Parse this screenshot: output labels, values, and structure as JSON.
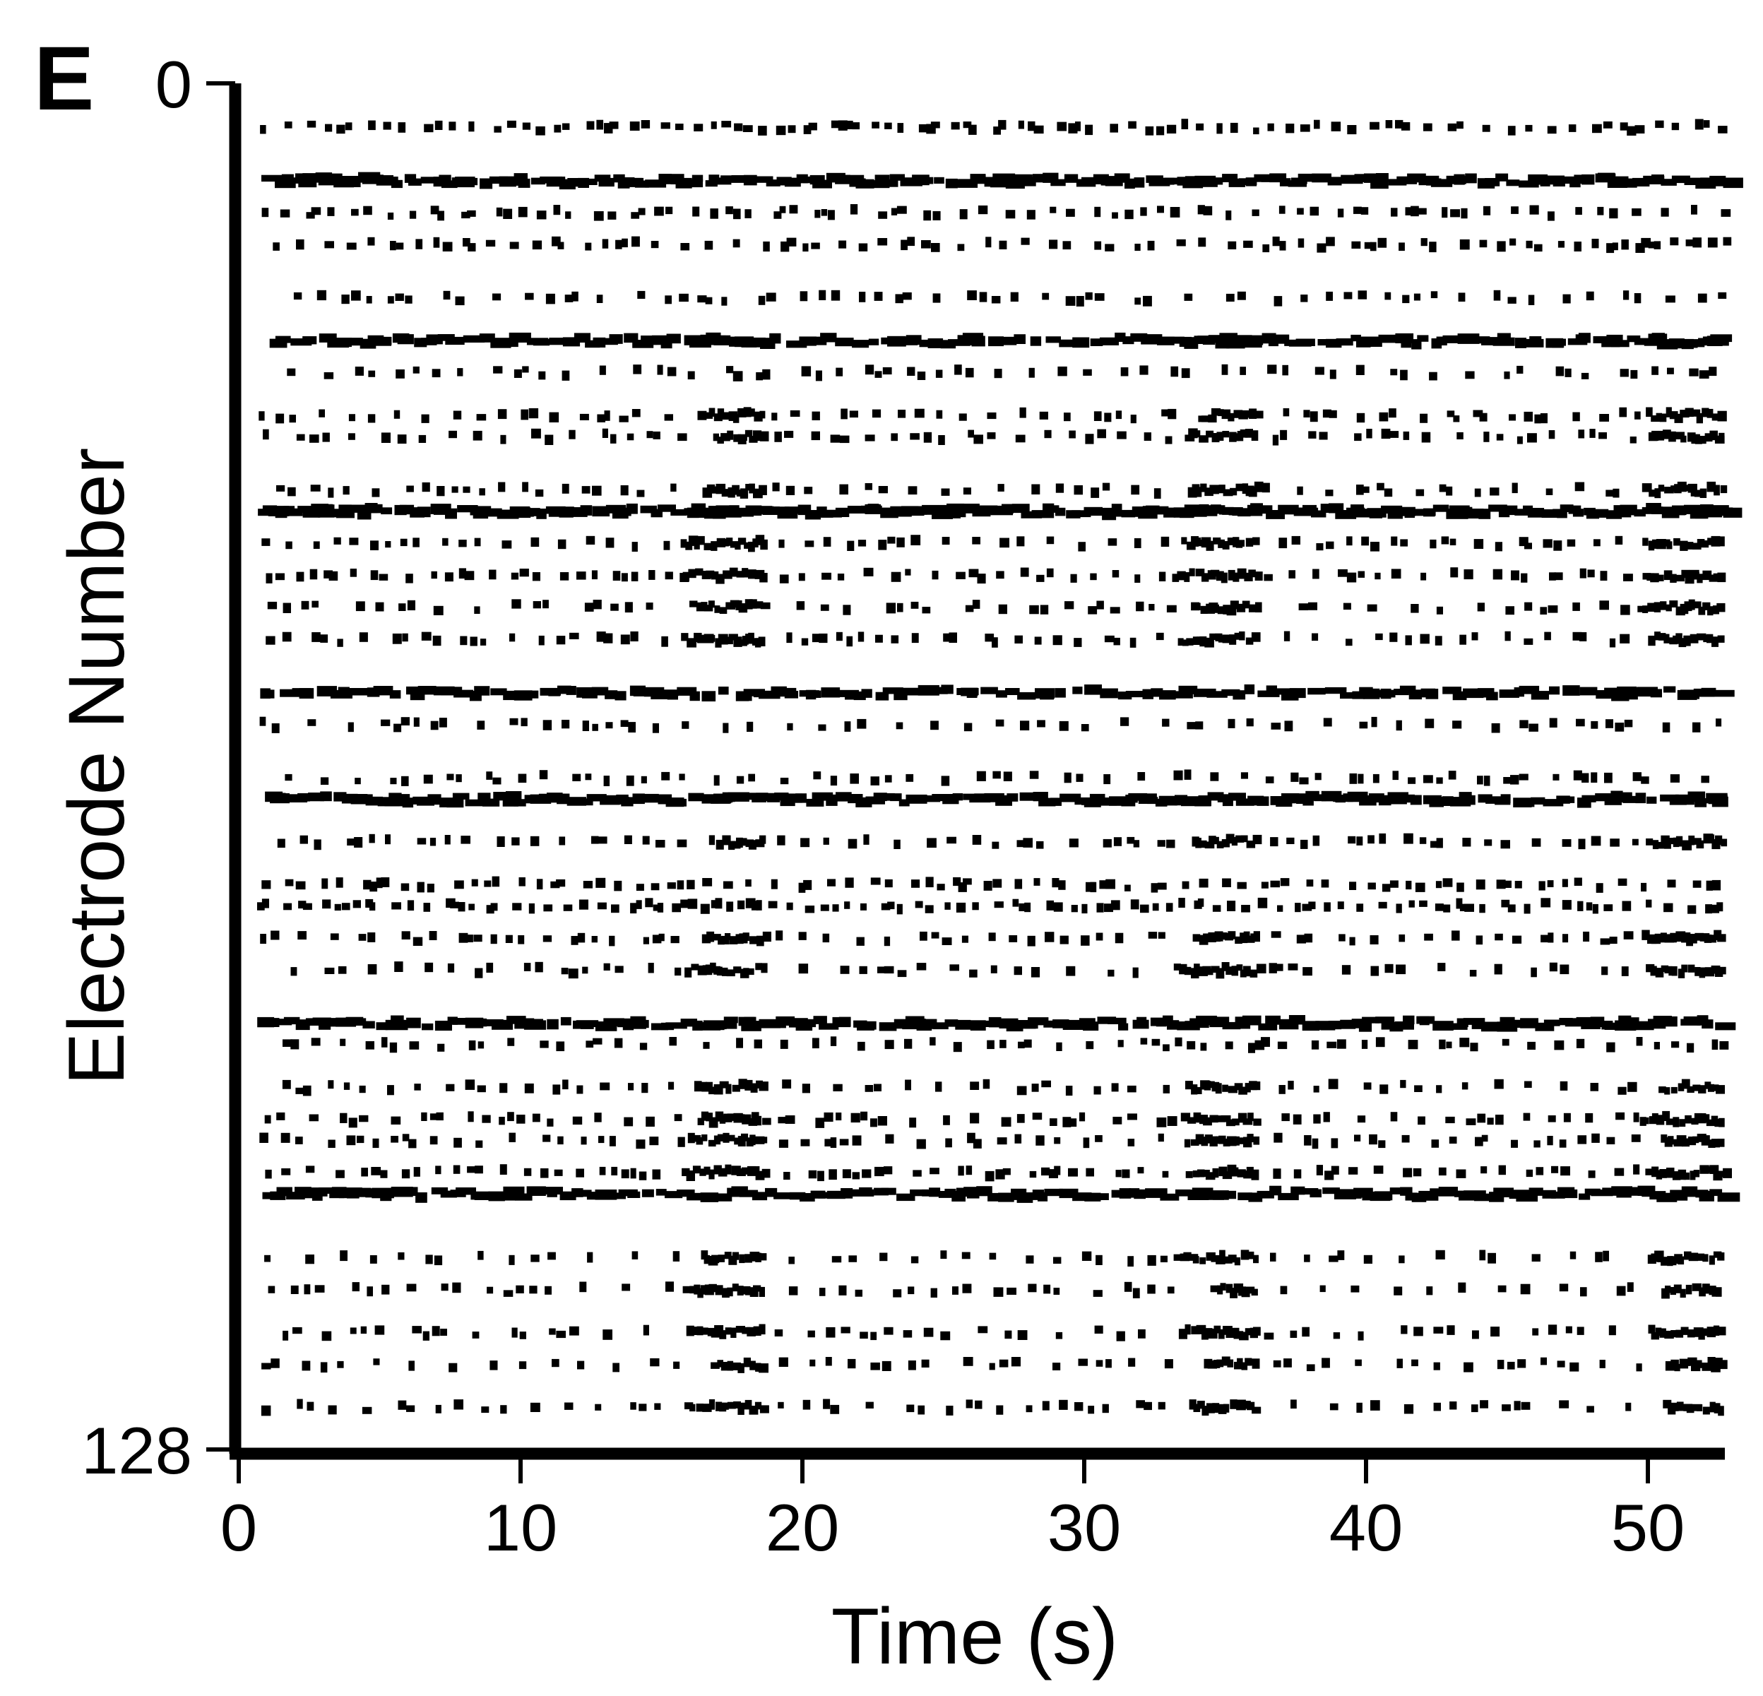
{
  "panel_label": "E",
  "chart_data": {
    "type": "scatter",
    "subtype": "raster",
    "title": "",
    "xlabel": "Time (s)",
    "ylabel": "Electrode Number",
    "xlim": [
      0,
      53
    ],
    "ylim": [
      0,
      128
    ],
    "y_inverted": true,
    "x_ticks": [
      0,
      10,
      20,
      30,
      40,
      50
    ],
    "y_ticks": [
      0,
      128
    ],
    "grid": false,
    "legend": "none",
    "marker_color": "#000000",
    "burst_times_s": [
      17,
      34.5,
      51
    ],
    "rows": [
      {
        "electrode": 4,
        "rate": 0.55,
        "bursty": false
      },
      {
        "electrode": 9,
        "rate": 0.85,
        "bursty": false
      },
      {
        "electrode": 12,
        "rate": 0.45,
        "bursty": false
      },
      {
        "electrode": 15,
        "rate": 0.4,
        "bursty": false
      },
      {
        "electrode": 20,
        "rate": 0.15,
        "bursty": false
      },
      {
        "electrode": 24,
        "rate": 0.75,
        "bursty": true
      },
      {
        "electrode": 27,
        "rate": 0.2,
        "bursty": false
      },
      {
        "electrode": 31,
        "rate": 0.35,
        "bursty": true
      },
      {
        "electrode": 33,
        "rate": 0.3,
        "bursty": true
      },
      {
        "electrode": 38,
        "rate": 0.3,
        "bursty": true
      },
      {
        "electrode": 40,
        "rate": 0.85,
        "bursty": true
      },
      {
        "electrode": 43,
        "rate": 0.4,
        "bursty": true
      },
      {
        "electrode": 46,
        "rate": 0.45,
        "bursty": true
      },
      {
        "electrode": 49,
        "rate": 0.1,
        "bursty": true
      },
      {
        "electrode": 52,
        "rate": 0.3,
        "bursty": true
      },
      {
        "electrode": 57,
        "rate": 0.75,
        "bursty": false
      },
      {
        "electrode": 60,
        "rate": 0.15,
        "bursty": false
      },
      {
        "electrode": 65,
        "rate": 0.3,
        "bursty": false
      },
      {
        "electrode": 67,
        "rate": 0.85,
        "bursty": false
      },
      {
        "electrode": 71,
        "rate": 0.3,
        "bursty": true
      },
      {
        "electrode": 75,
        "rate": 0.5,
        "bursty": false
      },
      {
        "electrode": 77,
        "rate": 0.6,
        "bursty": false
      },
      {
        "electrode": 80,
        "rate": 0.3,
        "bursty": true
      },
      {
        "electrode": 83,
        "rate": 0.15,
        "bursty": true
      },
      {
        "electrode": 88,
        "rate": 0.8,
        "bursty": false
      },
      {
        "electrode": 90,
        "rate": 0.35,
        "bursty": false
      },
      {
        "electrode": 94,
        "rate": 0.3,
        "bursty": true
      },
      {
        "electrode": 97,
        "rate": 0.35,
        "bursty": true
      },
      {
        "electrode": 99,
        "rate": 0.35,
        "bursty": true
      },
      {
        "electrode": 102,
        "rate": 0.45,
        "bursty": true
      },
      {
        "electrode": 104,
        "rate": 0.8,
        "bursty": false
      },
      {
        "electrode": 110,
        "rate": 0.08,
        "bursty": true
      },
      {
        "electrode": 113,
        "rate": 0.08,
        "bursty": true
      },
      {
        "electrode": 117,
        "rate": 0.12,
        "bursty": true
      },
      {
        "electrode": 120,
        "rate": 0.15,
        "bursty": true
      },
      {
        "electrode": 124,
        "rate": 0.18,
        "bursty": true
      }
    ]
  }
}
